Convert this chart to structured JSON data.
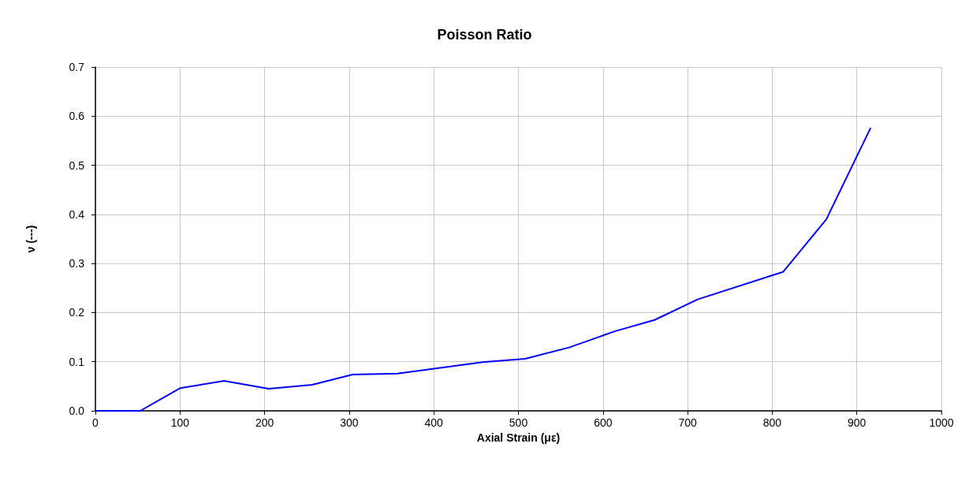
{
  "chart_data": {
    "type": "line",
    "title": "Poisson Ratio",
    "xlabel": "Axial Strain (με)",
    "ylabel": "ν (---)",
    "series": [
      {
        "color": "#0000ff",
        "x": [
          0,
          53,
          100,
          152,
          205,
          256,
          304,
          357,
          458,
          508,
          560,
          614,
          661,
          712,
          813,
          864,
          916
        ],
        "values": [
          0,
          0,
          0.046,
          0.061,
          0.045,
          0.053,
          0.074,
          0.076,
          0.099,
          0.106,
          0.129,
          0.162,
          0.185,
          0.227,
          0.283,
          0.39,
          0.575
        ]
      }
    ],
    "xlim": [
      0,
      1000
    ],
    "xticks": [
      0,
      100,
      200,
      300,
      400,
      500,
      600,
      700,
      800,
      900,
      1000
    ],
    "ylim": [
      0,
      0.7
    ],
    "yticks": [
      {
        "value": 0,
        "label": "0.0"
      },
      0.1,
      0.2,
      0.3,
      0.4,
      0.5,
      0.6,
      0.7
    ],
    "grid": true,
    "marker": "none",
    "line_style": "solid"
  }
}
